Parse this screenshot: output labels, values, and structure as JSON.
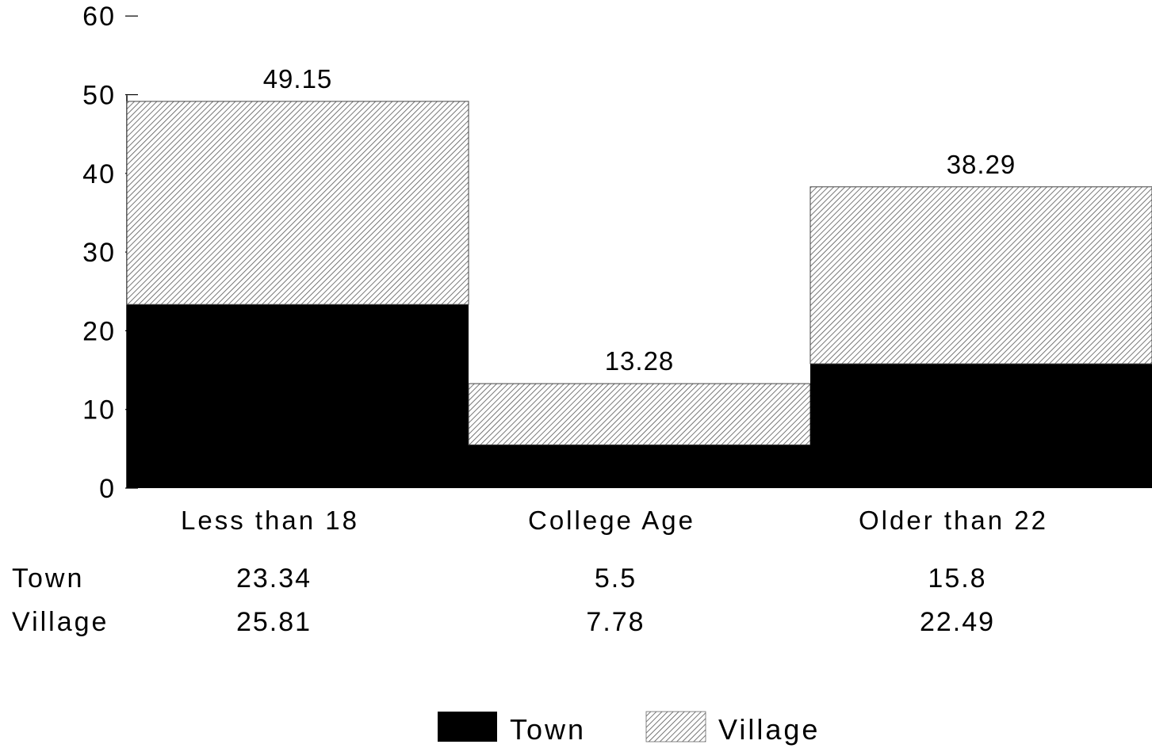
{
  "chart_data": {
    "type": "bar",
    "stacked": true,
    "title": "",
    "xlabel": "",
    "ylabel": "",
    "ylim": [
      0,
      60
    ],
    "yticks": [
      0,
      10,
      20,
      30,
      40,
      50,
      60
    ],
    "categories": [
      "Less than 18",
      "College Age",
      "Older than 22"
    ],
    "series": [
      {
        "name": "Town",
        "values": [
          23.34,
          5.5,
          15.8
        ],
        "color": "#000000",
        "fill": "solid"
      },
      {
        "name": "Village",
        "values": [
          25.81,
          7.78,
          22.49
        ],
        "color": "#ffffff",
        "fill": "diagonal-hatch"
      }
    ],
    "totals": [
      "49.15",
      "13.28",
      "38.29"
    ],
    "data_table": {
      "rows": [
        {
          "label": "Town",
          "values": [
            "23.34",
            "5.5",
            "15.8"
          ]
        },
        {
          "label": "Village",
          "values": [
            "25.81",
            "7.78",
            "22.49"
          ]
        }
      ]
    },
    "legend": {
      "position": "bottom-center",
      "entries": [
        {
          "label": "Town",
          "swatch": "solid"
        },
        {
          "label": "Village",
          "swatch": "diagonal-hatch"
        }
      ]
    },
    "grid": false
  }
}
